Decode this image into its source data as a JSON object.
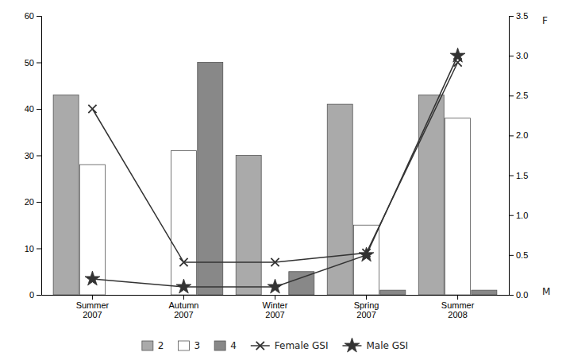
{
  "chart_data": {
    "type": "bar",
    "categories": [
      "Summer\n2007",
      "Autumn\n2007",
      "Winter\n2007",
      "Spring\n2007",
      "Summer\n2008"
    ],
    "series": [
      {
        "name": "2",
        "color": "#aaaaaa",
        "values": [
          43,
          0,
          30,
          41,
          43
        ]
      },
      {
        "name": "3",
        "color": "#ffffff",
        "values": [
          28,
          31,
          0,
          15,
          38
        ]
      },
      {
        "name": "4",
        "color": "#888888",
        "values": [
          0,
          50,
          5,
          1,
          1
        ]
      },
      {
        "name": "Female GSI",
        "type": "line",
        "color": "#333333",
        "marker": "x",
        "values": [
          40,
          7,
          7,
          9,
          50
        ]
      },
      {
        "name": "Male GSI",
        "type": "line",
        "color": "#333333",
        "marker": "star",
        "axis": "y2",
        "values": [
          0.2,
          0.1,
          0.1,
          0.5,
          3.0
        ]
      }
    ],
    "ylim": [
      0,
      60
    ],
    "yticks": [
      0,
      10,
      20,
      30,
      40,
      50,
      60
    ],
    "y2lim": [
      0.0,
      3.5
    ],
    "y2ticks": [
      {
        "value": 0.0,
        "label": "0.0"
      },
      0.5,
      {
        "value": 1.0,
        "label": "1.0"
      },
      1.5,
      {
        "value": 2.0,
        "label": "2.0"
      },
      2.5,
      {
        "value": 3.0,
        "label": "3.0"
      },
      3.5
    ],
    "annotations": [
      {
        "text": "F"
      },
      {
        "text": "M"
      }
    ],
    "legend": "bottom",
    "grid": false
  }
}
